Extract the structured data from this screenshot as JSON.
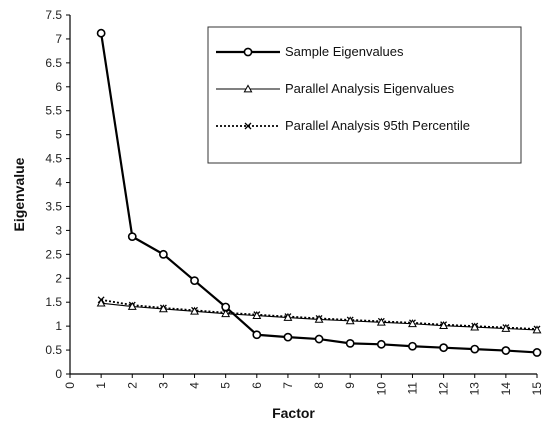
{
  "chart_data": {
    "type": "line",
    "xlabel": "Factor",
    "ylabel": "Eigenvalue",
    "xlim": [
      0,
      15
    ],
    "ylim": [
      0,
      7.5
    ],
    "x_ticks": [
      0,
      1,
      2,
      3,
      4,
      5,
      6,
      7,
      8,
      9,
      10,
      11,
      12,
      13,
      14,
      15
    ],
    "y_ticks": [
      0,
      0.5,
      1,
      1.5,
      2,
      2.5,
      3,
      3.5,
      4,
      4.5,
      5,
      5.5,
      6,
      6.5,
      7,
      7.5
    ],
    "x": [
      1,
      2,
      3,
      4,
      5,
      6,
      7,
      8,
      9,
      10,
      11,
      12,
      13,
      14,
      15
    ],
    "series": [
      {
        "name": "Sample Eigenvalues",
        "values": [
          7.12,
          2.87,
          2.5,
          1.95,
          1.4,
          0.82,
          0.77,
          0.73,
          0.64,
          0.62,
          0.58,
          0.55,
          0.52,
          0.49,
          0.45
        ],
        "color": "#000000",
        "marker": "circle",
        "line_style": "solid-thick"
      },
      {
        "name": "Parallel Analysis Eigenvalues",
        "values": [
          1.48,
          1.41,
          1.36,
          1.31,
          1.26,
          1.22,
          1.18,
          1.14,
          1.11,
          1.08,
          1.05,
          1.01,
          0.98,
          0.95,
          0.92
        ],
        "color": "#000000",
        "marker": "triangle",
        "line_style": "solid-thin"
      },
      {
        "name": "Parallel Analysis 95th Percentile",
        "values": [
          1.55,
          1.44,
          1.38,
          1.33,
          1.28,
          1.24,
          1.2,
          1.16,
          1.13,
          1.1,
          1.07,
          1.03,
          1.0,
          0.97,
          0.94
        ],
        "color": "#000000",
        "marker": "x",
        "line_style": "dotted"
      }
    ],
    "legend_position": "top-right",
    "grid": false
  }
}
